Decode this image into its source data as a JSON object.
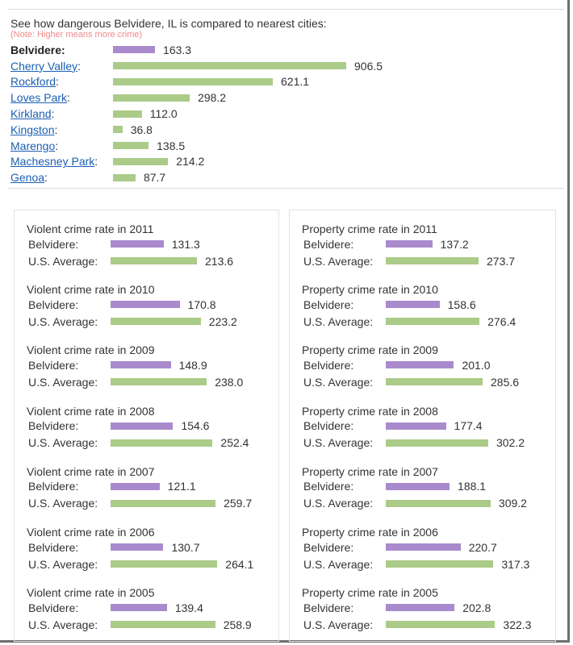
{
  "header": {
    "intro": "See how dangerous Belvidere, IL is compared to nearest cities:",
    "note": "(Note: Higher means more crime)"
  },
  "colors": {
    "city_bar": "#a98bcd",
    "comparison_bar": "#abcb89",
    "link": "#1a5fb4",
    "note": "#f08a8a"
  },
  "cities": [
    {
      "name": "Belvidere",
      "value": "163.3",
      "link": false
    },
    {
      "name": "Cherry Valley",
      "value": "906.5",
      "link": true
    },
    {
      "name": "Rockford",
      "value": "621.1",
      "link": true
    },
    {
      "name": "Loves Park",
      "value": "298.2",
      "link": true
    },
    {
      "name": "Kirkland",
      "value": "112.0",
      "link": true
    },
    {
      "name": "Kingston",
      "value": "36.8",
      "link": true
    },
    {
      "name": "Marengo",
      "value": "138.5",
      "link": true
    },
    {
      "name": "Machesney Park",
      "value": "214.2",
      "link": true
    },
    {
      "name": "Genoa",
      "value": "87.7",
      "link": true
    }
  ],
  "labels": {
    "city": "Belvidere:",
    "us": "U.S. Average:"
  },
  "violent": [
    {
      "title": "Violent crime rate in 2011",
      "city": "131.3",
      "us": "213.6"
    },
    {
      "title": "Violent crime rate in 2010",
      "city": "170.8",
      "us": "223.2"
    },
    {
      "title": "Violent crime rate in 2009",
      "city": "148.9",
      "us": "238.0"
    },
    {
      "title": "Violent crime rate in 2008",
      "city": "154.6",
      "us": "252.4"
    },
    {
      "title": "Violent crime rate in 2007",
      "city": "121.1",
      "us": "259.7"
    },
    {
      "title": "Violent crime rate in 2006",
      "city": "130.7",
      "us": "264.1"
    },
    {
      "title": "Violent crime rate in 2005",
      "city": "139.4",
      "us": "258.9"
    }
  ],
  "property": [
    {
      "title": "Property crime rate in 2011",
      "city": "137.2",
      "us": "273.7"
    },
    {
      "title": "Property crime rate in 2010",
      "city": "158.6",
      "us": "276.4"
    },
    {
      "title": "Property crime rate in 2009",
      "city": "201.0",
      "us": "285.6"
    },
    {
      "title": "Property crime rate in 2008",
      "city": "177.4",
      "us": "302.2"
    },
    {
      "title": "Property crime rate in 2007",
      "city": "188.1",
      "us": "309.2"
    },
    {
      "title": "Property crime rate in 2006",
      "city": "220.7",
      "us": "317.3"
    },
    {
      "title": "Property crime rate in 2005",
      "city": "202.8",
      "us": "322.3"
    }
  ],
  "chart_data": [
    {
      "type": "bar",
      "orientation": "horizontal",
      "title": "See how dangerous Belvidere, IL is compared to nearest cities:",
      "subtitle": "(Note: Higher means more crime)",
      "categories": [
        "Belvidere",
        "Cherry Valley",
        "Rockford",
        "Loves Park",
        "Kirkland",
        "Kingston",
        "Marengo",
        "Machesney Park",
        "Genoa"
      ],
      "values": [
        163.3,
        906.5,
        621.1,
        298.2,
        112.0,
        36.8,
        138.5,
        214.2,
        87.7
      ],
      "grid": false
    },
    {
      "type": "bar",
      "orientation": "horizontal",
      "title": "Violent crime rate",
      "categories": [
        "2011",
        "2010",
        "2009",
        "2008",
        "2007",
        "2006",
        "2005"
      ],
      "series": [
        {
          "name": "Belvidere",
          "values": [
            131.3,
            170.8,
            148.9,
            154.6,
            121.1,
            130.7,
            139.4
          ]
        },
        {
          "name": "U.S. Average",
          "values": [
            213.6,
            223.2,
            238.0,
            252.4,
            259.7,
            264.1,
            258.9
          ]
        }
      ],
      "grid": false
    },
    {
      "type": "bar",
      "orientation": "horizontal",
      "title": "Property crime rate",
      "categories": [
        "2011",
        "2010",
        "2009",
        "2008",
        "2007",
        "2006",
        "2005"
      ],
      "series": [
        {
          "name": "Belvidere",
          "values": [
            137.2,
            158.6,
            201.0,
            177.4,
            188.1,
            220.7,
            202.8
          ]
        },
        {
          "name": "U.S. Average",
          "values": [
            273.7,
            276.4,
            285.6,
            302.2,
            309.2,
            317.3,
            322.3
          ]
        }
      ],
      "grid": false
    }
  ]
}
